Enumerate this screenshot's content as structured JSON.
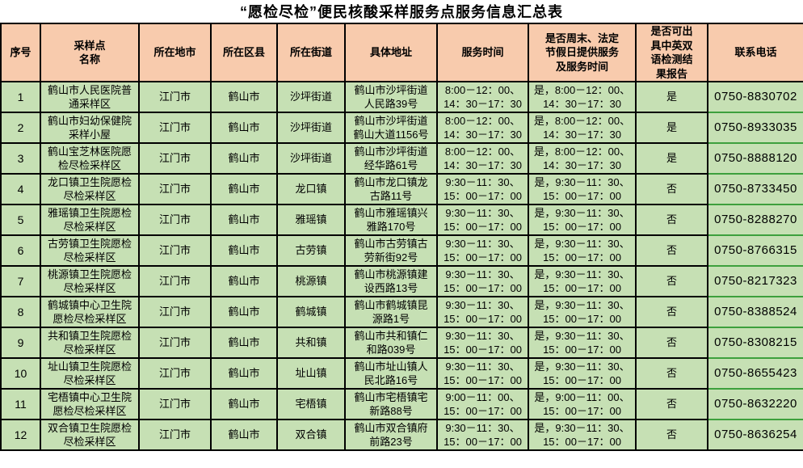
{
  "title": "“愿检尽检”便民核酸采样服务点服务信息汇总表",
  "colors": {
    "header_bg": "#F8CBAD",
    "body_bg": "#C6E0B4",
    "grid": "#000000",
    "phone_cell_border": "#3DA03D"
  },
  "table": {
    "headers": [
      "序号",
      "采样点\n名称",
      "所在地市",
      "所在区县",
      "所在街道",
      "具体地址",
      "服务时间",
      "是否周末、法定\n节假日提供服务\n及服务时间",
      "是否可出\n具中英双\n语检测结\n果报告",
      "联系电话"
    ],
    "rows": [
      {
        "no": "1",
        "name": "鹤山市人民医院普\n通采样区",
        "city": "江门市",
        "county": "鹤山市",
        "street": "沙坪街道",
        "address": "鹤山市沙坪街道\n人民路39号",
        "hours": "8:00－12：00、\n14：30－17：30",
        "weekend": "是，8:00－12：00、\n14：30－17：30",
        "bilingual": "是",
        "phone": "0750-8830702"
      },
      {
        "no": "2",
        "name": "鹤山市妇幼保健院\n采样小屋",
        "city": "江门市",
        "county": "鹤山市",
        "street": "沙坪街道",
        "address": "鹤山市沙坪街道\n鹤山大道1156号",
        "hours": "8:00－12：00、\n14：30－17：30",
        "weekend": "是，8:00－12：00、\n14：30－17：30",
        "bilingual": "是",
        "phone": "0750-8933035"
      },
      {
        "no": "3",
        "name": "鹤山宝芝林医院愿\n检尽检采样区",
        "city": "江门市",
        "county": "鹤山市",
        "street": "沙坪街道",
        "address": "鹤山市沙坪街道\n经华路61号",
        "hours": "8:00－12：00、\n14：30－17：30",
        "weekend": "是，8:00－12：00、\n14：30－17：30",
        "bilingual": "是",
        "phone": "0750-8888120"
      },
      {
        "no": "4",
        "name": "龙口镇卫生院愿检\n尽检采样区",
        "city": "江门市",
        "county": "鹤山市",
        "street": "龙口镇",
        "address": "鹤山市龙口镇龙\n古路11号",
        "hours": "9:30－11：30、\n15：00－17：00",
        "weekend": "是，9:30－11：30、\n15：00－17：00",
        "bilingual": "否",
        "phone": "0750-8733450"
      },
      {
        "no": "5",
        "name": "雅瑶镇卫生院愿检\n尽检采样区",
        "city": "江门市",
        "county": "鹤山市",
        "street": "雅瑶镇",
        "address": "鹤山市雅瑶镇兴\n雅路170号",
        "hours": "9:30－11：30、\n15：00－17：00",
        "weekend": "是，9:30－11：30、\n15：00－17：00",
        "bilingual": "否",
        "phone": "0750-8288270"
      },
      {
        "no": "6",
        "name": "古劳镇卫生院愿检\n尽检采样区",
        "city": "江门市",
        "county": "鹤山市",
        "street": "古劳镇",
        "address": "鹤山市古劳镇古\n劳新街92号",
        "hours": "9:30－11：30、\n15：00－17：00",
        "weekend": "是，9:30－11：30、\n15：00－17：00",
        "bilingual": "否",
        "phone": "0750-8766315"
      },
      {
        "no": "7",
        "name": "桃源镇卫生院愿检\n尽检采样区",
        "city": "江门市",
        "county": "鹤山市",
        "street": "桃源镇",
        "address": "鹤山市桃源镇建\n设西路13号",
        "hours": "9:30－11：30、\n15：00－17：00",
        "weekend": "是，9:30－11：30、\n15：00－17：00",
        "bilingual": "否",
        "phone": "0750-8217323"
      },
      {
        "no": "8",
        "name": "鹤城镇中心卫生院\n愿检尽检采样区",
        "city": "江门市",
        "county": "鹤山市",
        "street": "鹤城镇",
        "address": "鹤山市鹤城镇昆\n源路1号",
        "hours": "9:30－11：30、\n15：00－17：00",
        "weekend": "是，9:30－11：30、\n15：00－17：00",
        "bilingual": "否",
        "phone": "0750-8388524"
      },
      {
        "no": "9",
        "name": "共和镇卫生院愿检\n尽检采样区",
        "city": "江门市",
        "county": "鹤山市",
        "street": "共和镇",
        "address": "鹤山市共和镇仁\n和路039号",
        "hours": "9:30－11：30、\n15：00－17：00",
        "weekend": "是，9:30－11：30、\n15：00－17：00",
        "bilingual": "否",
        "phone": "0750-8308215"
      },
      {
        "no": "10",
        "name": "址山镇卫生院愿检\n尽检采样区",
        "city": "江门市",
        "county": "鹤山市",
        "street": "址山镇",
        "address": "鹤山市址山镇人\n民北路16号",
        "hours": "9:30－11：30、\n15：00－17：00",
        "weekend": "是，9:30－11：30、\n15：00－17：00",
        "bilingual": "否",
        "phone": "0750-8655423"
      },
      {
        "no": "11",
        "name": "宅梧镇中心卫生院\n愿检尽检采样区",
        "city": "江门市",
        "county": "鹤山市",
        "street": "宅梧镇",
        "address": "鹤山市宅梧镇宅\n新路88号",
        "hours": "9:00－11：00、\n15：00－17：00",
        "weekend": "是，9:00－11：00、\n15：00－17：00",
        "bilingual": "否",
        "phone": "0750-8632220"
      },
      {
        "no": "12",
        "name": "双合镇卫生院愿检\n尽检采样区",
        "city": "江门市",
        "county": "鹤山市",
        "street": "双合镇",
        "address": "鹤山市双合镇府\n前路23号",
        "hours": "9:30－11：30、\n15：00－17：00",
        "weekend": "是，9:30－11：30、\n15：00－17：00",
        "bilingual": "否",
        "phone": "0750-8636254"
      }
    ]
  }
}
